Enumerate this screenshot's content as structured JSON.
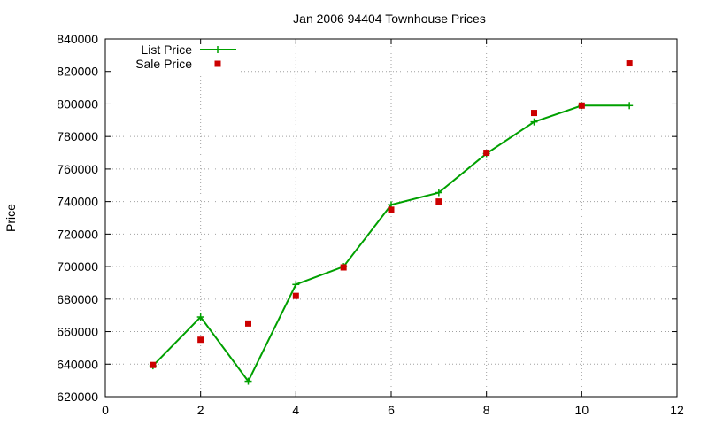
{
  "chart_data": {
    "type": "line",
    "title": "Jan 2006 94404 Townhouse Prices",
    "xlabel": "",
    "ylabel": "Price",
    "xlim": [
      0,
      12
    ],
    "ylim": [
      620000,
      840000
    ],
    "x_ticks": [
      0,
      2,
      4,
      6,
      8,
      10,
      12
    ],
    "y_ticks": [
      620000,
      640000,
      660000,
      680000,
      700000,
      720000,
      740000,
      760000,
      780000,
      800000,
      820000,
      840000
    ],
    "grid": true,
    "legend_position": "top-left",
    "series": [
      {
        "name": "List Price",
        "style": "line-plus",
        "color": "#00a000",
        "x": [
          1,
          2,
          3,
          4,
          5,
          6,
          7,
          8,
          9,
          10,
          11
        ],
        "y": [
          639000,
          669000,
          629500,
          689000,
          700000,
          738000,
          745500,
          769500,
          789000,
          799000,
          799000
        ]
      },
      {
        "name": "Sale Price",
        "style": "square-points",
        "color": "#cc0000",
        "x": [
          1,
          2,
          3,
          4,
          5,
          6,
          7,
          8,
          9,
          10,
          11
        ],
        "y": [
          639500,
          655000,
          665000,
          682000,
          699500,
          735000,
          740000,
          770000,
          794500,
          799000,
          825000
        ]
      }
    ]
  }
}
